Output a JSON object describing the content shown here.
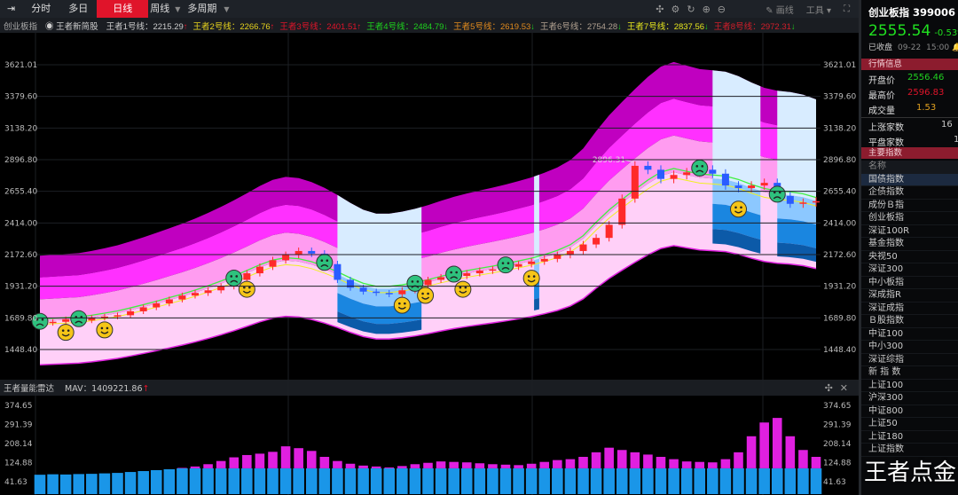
{
  "toolbar": {
    "tabs": [
      {
        "label": "分时"
      },
      {
        "label": "多日"
      },
      {
        "label": "日线",
        "active": true
      },
      {
        "label": "周线"
      },
      {
        "label": "多周期"
      }
    ],
    "draw_label": "画线",
    "tools_label": "工具"
  },
  "indicator": {
    "index_name": "创业板指",
    "strategy": "王者新简股",
    "lines": [
      {
        "label": "王者1号线：2215.29",
        "arrow": "↑",
        "color": "#cccccc",
        "arrow_color": "#e0142a"
      },
      {
        "label": "王者2号线：2266.76",
        "arrow": "↑",
        "color": "#e6d21e",
        "arrow_color": "#e0142a"
      },
      {
        "label": "王者3号线：2401.51",
        "arrow": "↑",
        "color": "#e0142a",
        "arrow_color": "#e0142a"
      },
      {
        "label": "王者4号线：2484.79",
        "arrow": "↓",
        "color": "#1ed21e",
        "arrow_color": "#1ed21e"
      },
      {
        "label": "王者5号线：2619.53",
        "arrow": "↓",
        "color": "#e08a1e",
        "arrow_color": "#1ed21e"
      },
      {
        "label": "王者6号线：2754.28",
        "arrow": "↓",
        "color": "#b0a090",
        "arrow_color": "#1ed21e"
      },
      {
        "label": "王者7号线：2837.56",
        "arrow": "↓",
        "color": "#e6e61e",
        "arrow_color": "#1ed21e"
      },
      {
        "label": "王者8号线：2972.31",
        "arrow": "↓",
        "color": "#d21e2a",
        "arrow_color": "#1ed21e"
      }
    ]
  },
  "volume_header": {
    "name": "王者量能雷达",
    "mav": "MAV：1409221.86",
    "arrow": "↑"
  },
  "chart_data": [
    {
      "type": "candlestick",
      "price_ticks": [
        "3621.01",
        "3379.60",
        "3138.20",
        "2896.80",
        "2655.40",
        "2414.00",
        "2172.60",
        "1931.20",
        "1689.80",
        "1448.40"
      ],
      "ylim": [
        1448.4,
        3621.01
      ],
      "closes": [
        1650,
        1660,
        1680,
        1670,
        1690,
        1700,
        1710,
        1740,
        1770,
        1800,
        1830,
        1860,
        1880,
        1900,
        1930,
        1980,
        2030,
        2080,
        2130,
        2170,
        2200,
        2180,
        2100,
        1980,
        1920,
        1890,
        1880,
        1870,
        1900,
        1940,
        1980,
        2000,
        2010,
        2030,
        2050,
        2060,
        2080,
        2100,
        2120,
        2140,
        2170,
        2200,
        2250,
        2300,
        2400,
        2600,
        2850,
        2820,
        2750,
        2780,
        2800,
        2820,
        2790,
        2700,
        2680,
        2700,
        2720,
        2620,
        2560,
        2570,
        2580
      ],
      "annotation": {
        "label": "2896.31",
        "index": 46
      },
      "signals": [
        {
          "i": 0,
          "type": "sad"
        },
        {
          "i": 2,
          "type": "happy"
        },
        {
          "i": 3,
          "type": "sad"
        },
        {
          "i": 5,
          "type": "happy"
        },
        {
          "i": 15,
          "type": "sad"
        },
        {
          "i": 16,
          "type": "happy"
        },
        {
          "i": 22,
          "type": "sad"
        },
        {
          "i": 28,
          "type": "happy"
        },
        {
          "i": 29,
          "type": "sad"
        },
        {
          "i": 29.8,
          "type": "happy"
        },
        {
          "i": 32,
          "type": "sad"
        },
        {
          "i": 32.7,
          "type": "happy"
        },
        {
          "i": 36,
          "type": "sad"
        },
        {
          "i": 38,
          "type": "happy"
        },
        {
          "i": 51,
          "type": "sad"
        },
        {
          "i": 54,
          "type": "happy"
        },
        {
          "i": 57,
          "type": "sad"
        }
      ],
      "blue_zones": [
        [
          23,
          29.5
        ],
        [
          38.2,
          38.6
        ],
        [
          52,
          55.7
        ],
        [
          57,
          60.5
        ]
      ],
      "colors": {
        "up": "#ff2a2a",
        "down": "#2a5cff",
        "band_outer": "#c000c0",
        "band_mid": "#ff30ff",
        "band_inner": "#ff9cf0",
        "band_low": "#ffd0f8",
        "blue_outer": "#d8ecff",
        "blue_mid": "#8cc8ff",
        "blue_inner": "#1a86e0",
        "ma_yellow": "#f0f020",
        "ma_green": "#40f040"
      }
    },
    {
      "type": "bar",
      "ticks": [
        "374.65",
        "291.39",
        "208.14",
        "124.88",
        "41.63"
      ],
      "ylim": [
        41.63,
        374.65
      ],
      "values": [
        72,
        74,
        73,
        75,
        76,
        78,
        80,
        84,
        88,
        92,
        96,
        102,
        108,
        118,
        132,
        148,
        158,
        164,
        172,
        196,
        188,
        176,
        150,
        132,
        120,
        112,
        108,
        104,
        110,
        118,
        124,
        130,
        128,
        126,
        122,
        118,
        116,
        114,
        120,
        128,
        136,
        140,
        150,
        170,
        190,
        180,
        170,
        160,
        150,
        140,
        130,
        128,
        126,
        140,
        170,
        240,
        300,
        320,
        240,
        180,
        150
      ],
      "base_color": "#1a96e8",
      "top_color": "#e020e0"
    }
  ],
  "right_panel": {
    "title": "创业板指 399006",
    "price": "2555.54",
    "change": "-0.53%",
    "status": "已收盘",
    "date": "09-22",
    "time": "15:00",
    "quote_header": "行情信息",
    "open_label": "开盘价",
    "open": "2556.46",
    "high_label": "最高价",
    "high": "2596.83",
    "vol_label": "成交量",
    "vol": "1.53",
    "up_label": "上涨家数",
    "up": "16",
    "flat_label": "平盘家数",
    "flat": "1",
    "index_header": "主要指数",
    "name_col": "名称",
    "indices": [
      "国债指数",
      "企债指数",
      "成份Ｂ指",
      "创业板指",
      "深证100R",
      "基金指数",
      "央视50",
      "深证300",
      "中小板指",
      "深成指R",
      "深证成指",
      "Ｂ股指数",
      "中证100",
      "中小300",
      "深证综指",
      "新 指 数",
      "上证100",
      "沪深300",
      "中证800",
      "上证50",
      "上证180",
      "上证指数"
    ]
  },
  "watermark": "王者点金"
}
